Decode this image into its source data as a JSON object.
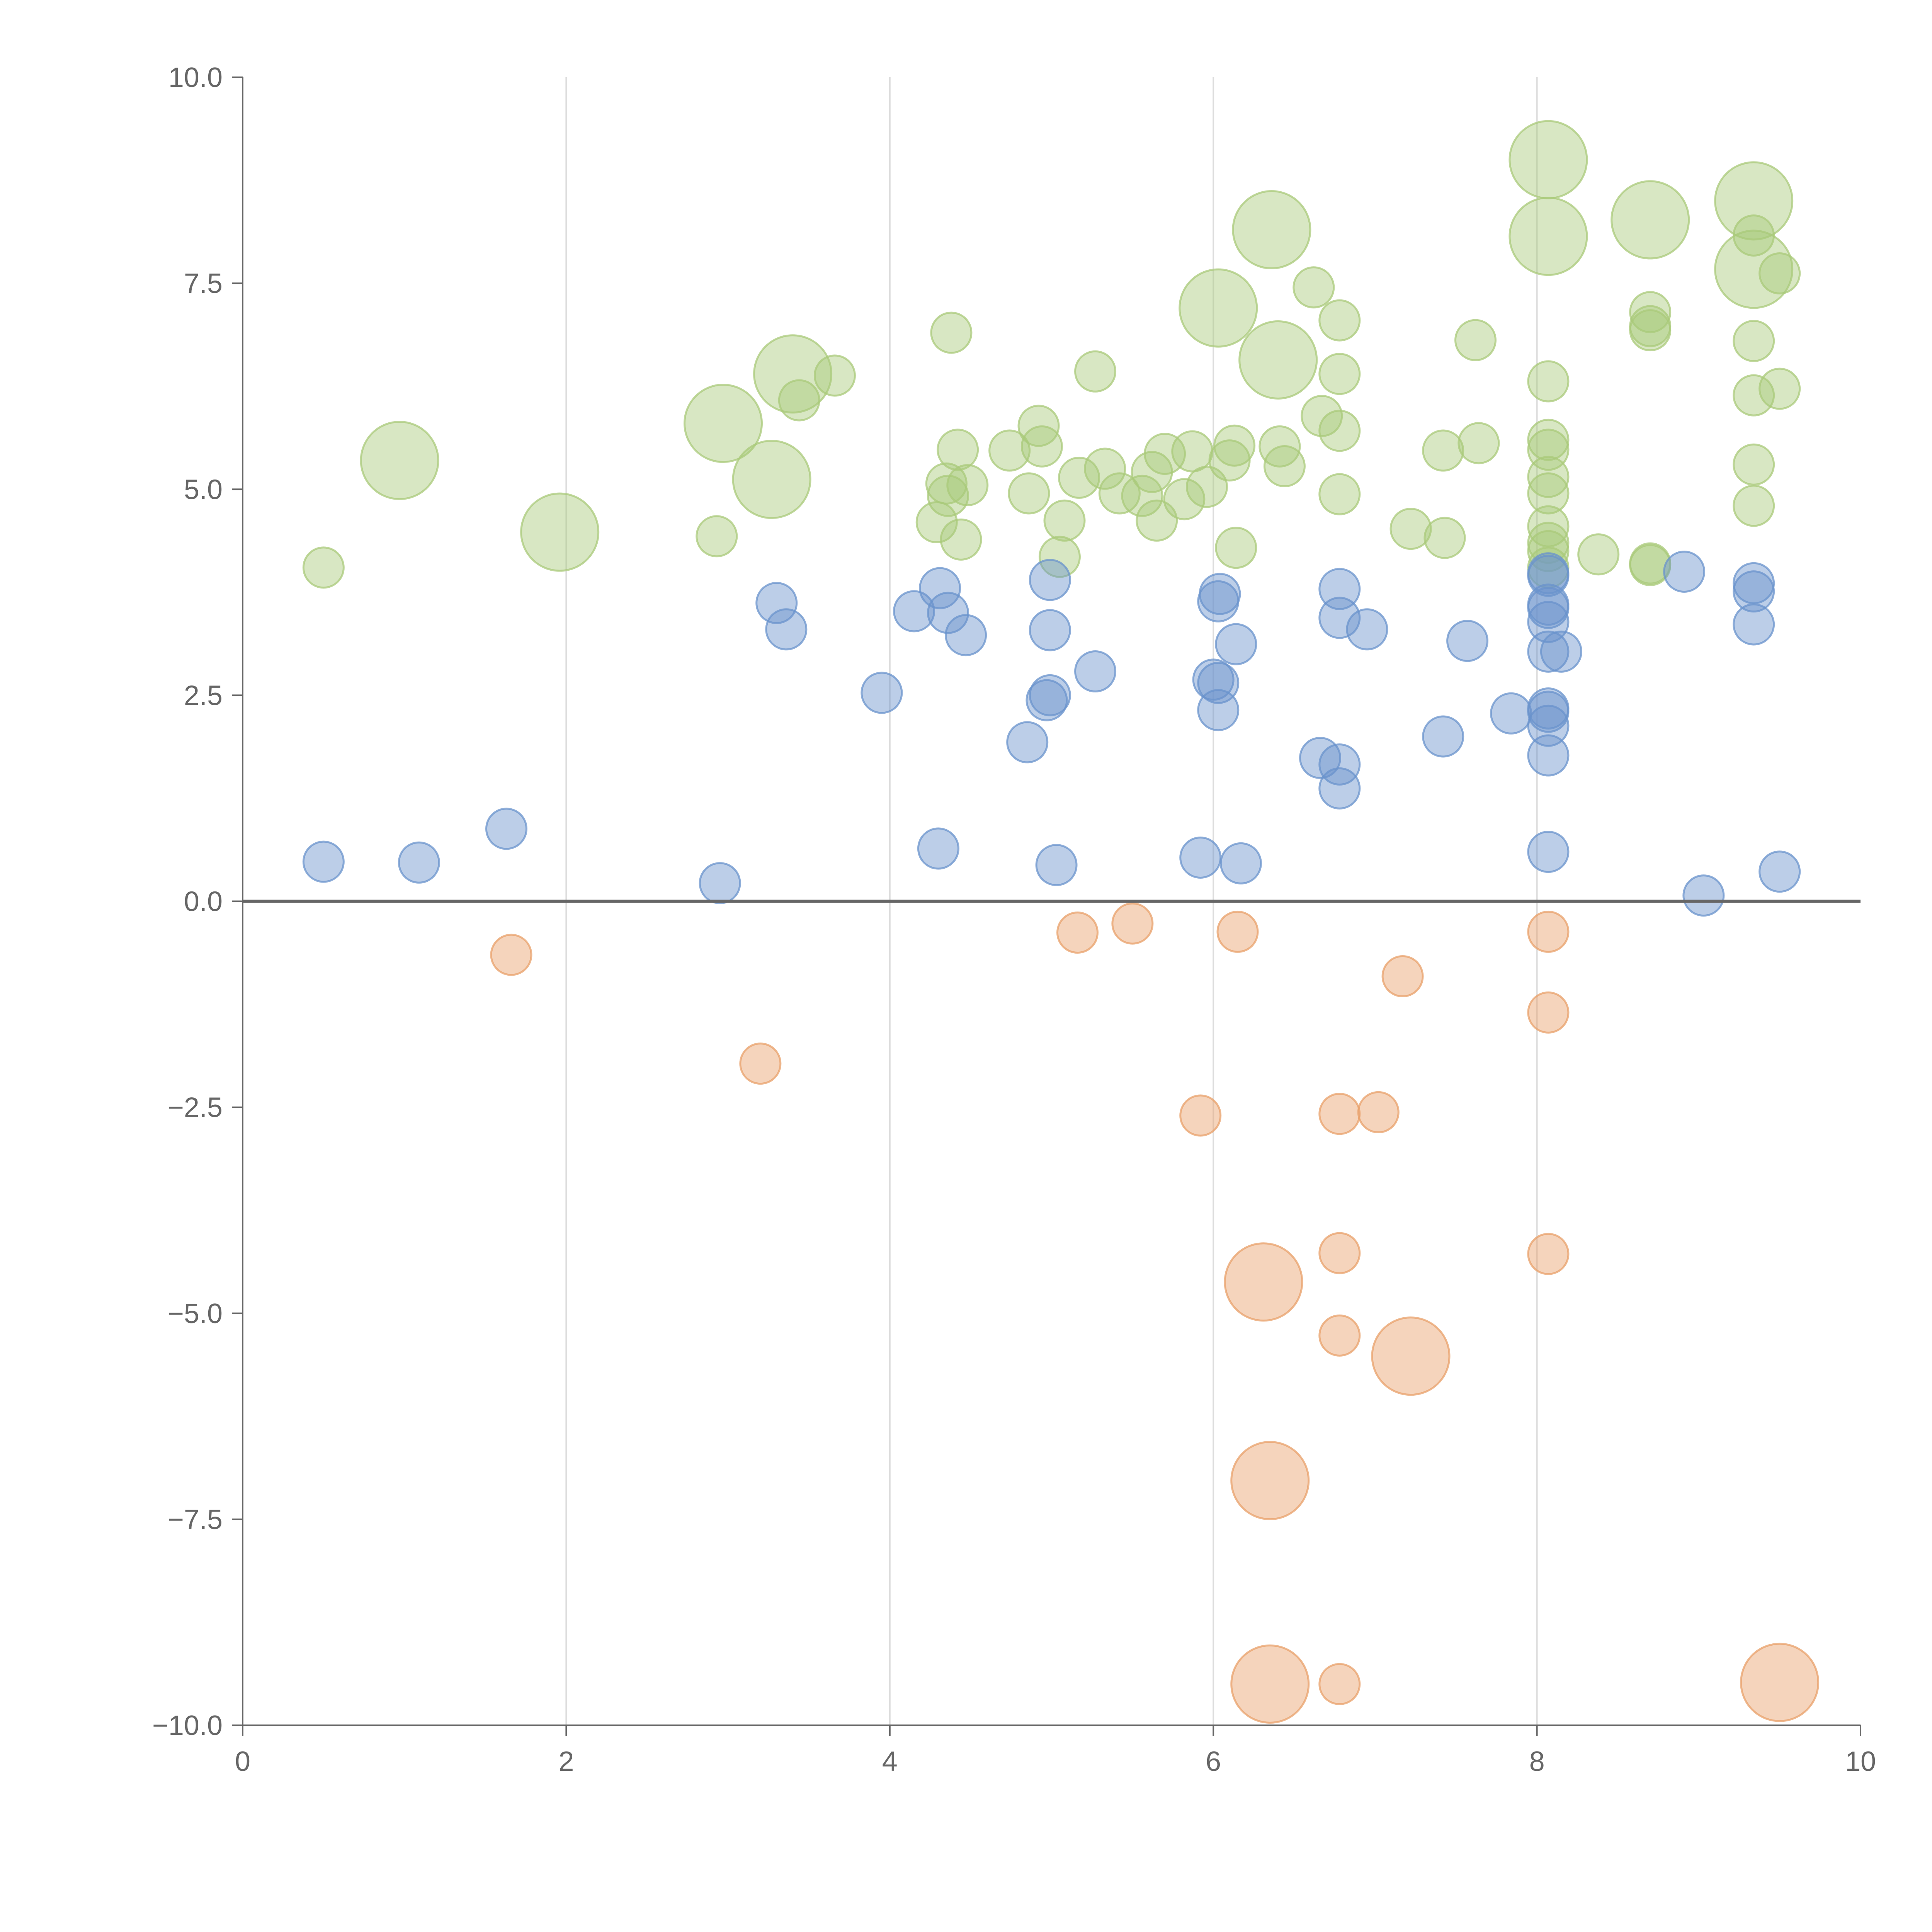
{
  "chart_data": {
    "type": "scatter",
    "subtype": "bubble",
    "title": "",
    "xlabel": "",
    "ylabel": "",
    "xlim": [
      0,
      10
    ],
    "ylim": [
      -10,
      10
    ],
    "x_ticks": [
      "0",
      "2",
      "4",
      "6",
      "8",
      "10"
    ],
    "y_ticks": [
      "10.0",
      "7.5",
      "5.0",
      "2.5",
      "0.0",
      "−2.5",
      "−5.0",
      "−7.5",
      "−10.0"
    ],
    "x_tick_values": [
      0,
      2,
      4,
      6,
      8,
      10
    ],
    "y_tick_values": [
      10,
      7.5,
      5,
      2.5,
      0,
      -2.5,
      -5,
      -7.5,
      -10
    ],
    "grid": "vertical",
    "reference_line_y": 0,
    "colors": {
      "green": "#a9c97a",
      "blue": "#6a93cc",
      "orange": "#e8a06a",
      "axis": "#666666",
      "grid": "#dddddd"
    },
    "series": [
      {
        "name": "green",
        "color": "#a9c97a",
        "points": [
          {
            "x": 0.5,
            "y": 4.05,
            "r": 1
          },
          {
            "x": 0.97,
            "y": 5.35,
            "r": 2.5
          },
          {
            "x": 1.96,
            "y": 4.48,
            "r": 2.5
          },
          {
            "x": 2.93,
            "y": 4.43,
            "r": 1
          },
          {
            "x": 2.97,
            "y": 5.8,
            "r": 2.5
          },
          {
            "x": 3.27,
            "y": 5.12,
            "r": 2.5
          },
          {
            "x": 3.4,
            "y": 6.4,
            "r": 2.5
          },
          {
            "x": 3.44,
            "y": 6.08,
            "r": 1
          },
          {
            "x": 3.66,
            "y": 6.38,
            "r": 1
          },
          {
            "x": 4.29,
            "y": 4.6,
            "r": 1
          },
          {
            "x": 4.35,
            "y": 5.07,
            "r": 1
          },
          {
            "x": 4.36,
            "y": 4.92,
            "r": 1
          },
          {
            "x": 4.38,
            "y": 6.9,
            "r": 1
          },
          {
            "x": 4.42,
            "y": 5.48,
            "r": 1
          },
          {
            "x": 4.44,
            "y": 4.39,
            "r": 1
          },
          {
            "x": 4.48,
            "y": 5.05,
            "r": 1
          },
          {
            "x": 4.74,
            "y": 5.47,
            "r": 1
          },
          {
            "x": 4.86,
            "y": 4.95,
            "r": 1
          },
          {
            "x": 4.92,
            "y": 5.77,
            "r": 1
          },
          {
            "x": 4.94,
            "y": 5.52,
            "r": 1
          },
          {
            "x": 5.05,
            "y": 4.18,
            "r": 1
          },
          {
            "x": 5.08,
            "y": 4.62,
            "r": 1
          },
          {
            "x": 5.17,
            "y": 5.14,
            "r": 1
          },
          {
            "x": 5.27,
            "y": 6.43,
            "r": 1
          },
          {
            "x": 5.33,
            "y": 5.25,
            "r": 1
          },
          {
            "x": 5.42,
            "y": 4.95,
            "r": 1
          },
          {
            "x": 5.56,
            "y": 4.92,
            "r": 1
          },
          {
            "x": 5.62,
            "y": 5.21,
            "r": 1
          },
          {
            "x": 5.65,
            "y": 4.62,
            "r": 1
          },
          {
            "x": 5.7,
            "y": 5.43,
            "r": 1
          },
          {
            "x": 5.82,
            "y": 4.88,
            "r": 1
          },
          {
            "x": 5.87,
            "y": 5.46,
            "r": 1
          },
          {
            "x": 5.96,
            "y": 5.03,
            "r": 1
          },
          {
            "x": 6.03,
            "y": 7.2,
            "r": 2.5
          },
          {
            "x": 6.1,
            "y": 5.35,
            "r": 1
          },
          {
            "x": 6.13,
            "y": 5.53,
            "r": 1
          },
          {
            "x": 6.14,
            "y": 4.29,
            "r": 1
          },
          {
            "x": 6.36,
            "y": 8.15,
            "r": 2.5
          },
          {
            "x": 6.4,
            "y": 6.57,
            "r": 2.5
          },
          {
            "x": 6.41,
            "y": 5.52,
            "r": 1
          },
          {
            "x": 6.44,
            "y": 5.28,
            "r": 1
          },
          {
            "x": 6.62,
            "y": 7.45,
            "r": 1
          },
          {
            "x": 6.67,
            "y": 5.89,
            "r": 1
          },
          {
            "x": 6.78,
            "y": 7.05,
            "r": 1
          },
          {
            "x": 6.78,
            "y": 6.4,
            "r": 1
          },
          {
            "x": 6.78,
            "y": 5.71,
            "r": 1
          },
          {
            "x": 6.78,
            "y": 4.94,
            "r": 1
          },
          {
            "x": 7.22,
            "y": 4.52,
            "r": 1
          },
          {
            "x": 7.42,
            "y": 5.47,
            "r": 1
          },
          {
            "x": 7.43,
            "y": 4.41,
            "r": 1
          },
          {
            "x": 7.62,
            "y": 6.81,
            "r": 1
          },
          {
            "x": 7.64,
            "y": 5.56,
            "r": 1
          },
          {
            "x": 8.07,
            "y": 9.0,
            "r": 2.5
          },
          {
            "x": 8.07,
            "y": 8.07,
            "r": 2.5
          },
          {
            "x": 8.07,
            "y": 6.31,
            "r": 1
          },
          {
            "x": 8.07,
            "y": 5.6,
            "r": 1
          },
          {
            "x": 8.07,
            "y": 5.48,
            "r": 1
          },
          {
            "x": 8.07,
            "y": 5.15,
            "r": 1
          },
          {
            "x": 8.07,
            "y": 4.95,
            "r": 1
          },
          {
            "x": 8.07,
            "y": 4.55,
            "r": 1
          },
          {
            "x": 8.07,
            "y": 4.35,
            "r": 1
          },
          {
            "x": 8.07,
            "y": 4.25,
            "r": 1
          },
          {
            "x": 8.07,
            "y": 4.05,
            "r": 1
          },
          {
            "x": 8.38,
            "y": 4.21,
            "r": 1
          },
          {
            "x": 8.7,
            "y": 8.27,
            "r": 2.5
          },
          {
            "x": 8.7,
            "y": 7.15,
            "r": 1
          },
          {
            "x": 8.7,
            "y": 6.98,
            "r": 1
          },
          {
            "x": 8.7,
            "y": 6.93,
            "r": 1
          },
          {
            "x": 8.7,
            "y": 4.1,
            "r": 1
          },
          {
            "x": 8.7,
            "y": 4.08,
            "r": 1
          },
          {
            "x": 9.34,
            "y": 8.5,
            "r": 2.5
          },
          {
            "x": 9.34,
            "y": 7.67,
            "r": 2.5
          },
          {
            "x": 9.34,
            "y": 8.08,
            "r": 1
          },
          {
            "x": 9.34,
            "y": 6.8,
            "r": 1
          },
          {
            "x": 9.34,
            "y": 6.14,
            "r": 1
          },
          {
            "x": 9.34,
            "y": 5.3,
            "r": 1
          },
          {
            "x": 9.34,
            "y": 4.8,
            "r": 1
          },
          {
            "x": 9.5,
            "y": 7.62,
            "r": 1
          },
          {
            "x": 9.5,
            "y": 6.22,
            "r": 1
          }
        ]
      },
      {
        "name": "blue",
        "color": "#6a93cc",
        "points": [
          {
            "x": 0.5,
            "y": 0.48,
            "r": 1
          },
          {
            "x": 1.09,
            "y": 0.47,
            "r": 1
          },
          {
            "x": 1.63,
            "y": 0.88,
            "r": 1
          },
          {
            "x": 2.95,
            "y": 0.22,
            "r": 1
          },
          {
            "x": 3.3,
            "y": 3.62,
            "r": 1
          },
          {
            "x": 3.36,
            "y": 3.3,
            "r": 1
          },
          {
            "x": 3.95,
            "y": 2.53,
            "r": 1
          },
          {
            "x": 4.15,
            "y": 3.52,
            "r": 1
          },
          {
            "x": 4.3,
            "y": 0.64,
            "r": 1
          },
          {
            "x": 4.31,
            "y": 3.8,
            "r": 1
          },
          {
            "x": 4.36,
            "y": 3.5,
            "r": 1
          },
          {
            "x": 4.47,
            "y": 3.23,
            "r": 1
          },
          {
            "x": 4.85,
            "y": 1.93,
            "r": 1
          },
          {
            "x": 4.97,
            "y": 2.44,
            "r": 1
          },
          {
            "x": 4.99,
            "y": 2.5,
            "r": 1
          },
          {
            "x": 4.99,
            "y": 3.29,
            "r": 1
          },
          {
            "x": 4.99,
            "y": 3.9,
            "r": 1
          },
          {
            "x": 5.03,
            "y": 0.44,
            "r": 1
          },
          {
            "x": 5.27,
            "y": 2.79,
            "r": 1
          },
          {
            "x": 5.92,
            "y": 0.53,
            "r": 1
          },
          {
            "x": 6.0,
            "y": 2.69,
            "r": 1
          },
          {
            "x": 6.03,
            "y": 2.65,
            "r": 1
          },
          {
            "x": 6.03,
            "y": 2.32,
            "r": 1
          },
          {
            "x": 6.03,
            "y": 3.64,
            "r": 1
          },
          {
            "x": 6.04,
            "y": 3.73,
            "r": 1
          },
          {
            "x": 6.14,
            "y": 3.12,
            "r": 1
          },
          {
            "x": 6.17,
            "y": 0.46,
            "r": 1
          },
          {
            "x": 6.66,
            "y": 1.74,
            "r": 1
          },
          {
            "x": 6.78,
            "y": 1.37,
            "r": 1
          },
          {
            "x": 6.78,
            "y": 1.66,
            "r": 1
          },
          {
            "x": 6.78,
            "y": 3.44,
            "r": 1
          },
          {
            "x": 6.78,
            "y": 3.79,
            "r": 1
          },
          {
            "x": 6.95,
            "y": 3.3,
            "r": 1
          },
          {
            "x": 7.42,
            "y": 2.0,
            "r": 1
          },
          {
            "x": 7.57,
            "y": 3.16,
            "r": 1
          },
          {
            "x": 7.84,
            "y": 2.28,
            "r": 1
          },
          {
            "x": 8.07,
            "y": 0.6,
            "r": 1
          },
          {
            "x": 8.07,
            "y": 1.77,
            "r": 1
          },
          {
            "x": 8.07,
            "y": 2.13,
            "r": 1
          },
          {
            "x": 8.07,
            "y": 2.3,
            "r": 1
          },
          {
            "x": 8.07,
            "y": 2.34,
            "r": 1
          },
          {
            "x": 8.07,
            "y": 3.03,
            "r": 1
          },
          {
            "x": 8.07,
            "y": 3.39,
            "r": 1
          },
          {
            "x": 8.07,
            "y": 3.56,
            "r": 1
          },
          {
            "x": 8.07,
            "y": 3.6,
            "r": 1
          },
          {
            "x": 8.07,
            "y": 3.95,
            "r": 1
          },
          {
            "x": 8.07,
            "y": 3.98,
            "r": 1
          },
          {
            "x": 8.15,
            "y": 3.03,
            "r": 1
          },
          {
            "x": 8.91,
            "y": 4.0,
            "r": 1
          },
          {
            "x": 9.03,
            "y": 0.07,
            "r": 1
          },
          {
            "x": 9.34,
            "y": 3.36,
            "r": 1
          },
          {
            "x": 9.34,
            "y": 3.76,
            "r": 1
          },
          {
            "x": 9.34,
            "y": 3.86,
            "r": 1
          },
          {
            "x": 9.5,
            "y": 0.36,
            "r": 1
          }
        ]
      },
      {
        "name": "orange",
        "color": "#e8a06a",
        "points": [
          {
            "x": 1.66,
            "y": -0.65,
            "r": 1
          },
          {
            "x": 3.2,
            "y": -1.97,
            "r": 1
          },
          {
            "x": 5.16,
            "y": -0.38,
            "r": 1
          },
          {
            "x": 5.5,
            "y": -0.27,
            "r": 1
          },
          {
            "x": 5.92,
            "y": -2.6,
            "r": 1
          },
          {
            "x": 6.15,
            "y": -0.37,
            "r": 1
          },
          {
            "x": 6.31,
            "y": -4.62,
            "r": 2.5
          },
          {
            "x": 6.35,
            "y": -7.03,
            "r": 2.5
          },
          {
            "x": 6.35,
            "y": -9.5,
            "r": 2.5
          },
          {
            "x": 6.78,
            "y": -2.58,
            "r": 1
          },
          {
            "x": 6.78,
            "y": -4.27,
            "r": 1
          },
          {
            "x": 6.78,
            "y": -5.27,
            "r": 1
          },
          {
            "x": 6.78,
            "y": -9.5,
            "r": 1
          },
          {
            "x": 7.02,
            "y": -2.56,
            "r": 1
          },
          {
            "x": 7.17,
            "y": -0.91,
            "r": 1
          },
          {
            "x": 7.22,
            "y": -5.52,
            "r": 2.5
          },
          {
            "x": 8.07,
            "y": -0.37,
            "r": 1
          },
          {
            "x": 8.07,
            "y": -1.35,
            "r": 1
          },
          {
            "x": 8.07,
            "y": -4.28,
            "r": 1
          },
          {
            "x": 9.5,
            "y": -9.48,
            "r": 2.5
          }
        ]
      }
    ]
  }
}
